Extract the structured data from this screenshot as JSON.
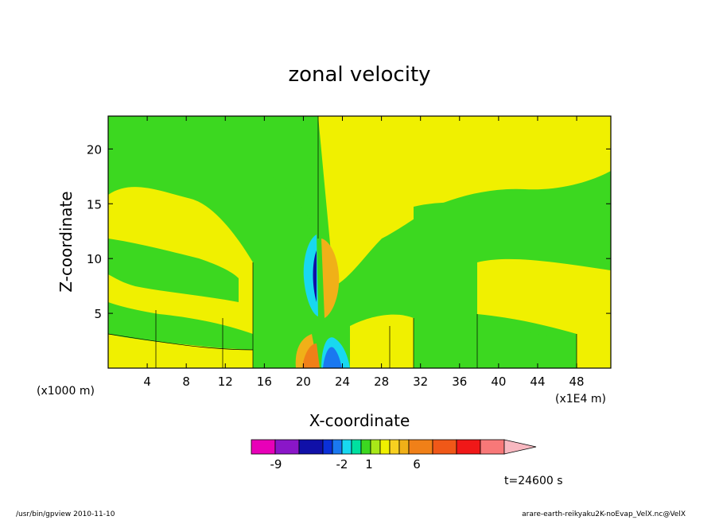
{
  "chart_data": {
    "type": "heatmap",
    "title": "zonal velocity",
    "xlabel": "X-coordinate",
    "ylabel": "Z-coordinate",
    "xlim": [
      0,
      51.5
    ],
    "ylim": [
      0,
      23
    ],
    "x_ticks": [
      "4",
      "8",
      "12",
      "16",
      "20",
      "24",
      "28",
      "32",
      "36",
      "40",
      "44",
      "48"
    ],
    "y_ticks": [
      "5",
      "10",
      "15",
      "20"
    ],
    "x_scale_note": "(x1E4 m)",
    "y_scale_note": "(x1000 m)",
    "colorbar": {
      "colors": [
        "#e800b8",
        "#8a16c8",
        "#1010a8",
        "#0a30d8",
        "#1a78f0",
        "#18d8f0",
        "#00e0a0",
        "#3cd820",
        "#a8e818",
        "#f0f000",
        "#f8d020",
        "#f0b018",
        "#f08018",
        "#f05818",
        "#f01818",
        "#f87878",
        "#f8b8c0"
      ],
      "tick_labels": [
        "-9",
        "-2",
        "1",
        "6"
      ]
    },
    "time_label": "t=24600 s"
  },
  "footer": {
    "left": "/usr/bin/gpview   2010-11-10",
    "right": "arare-earth-reikyaku2K-noEvap_VelX.nc@VelX"
  }
}
